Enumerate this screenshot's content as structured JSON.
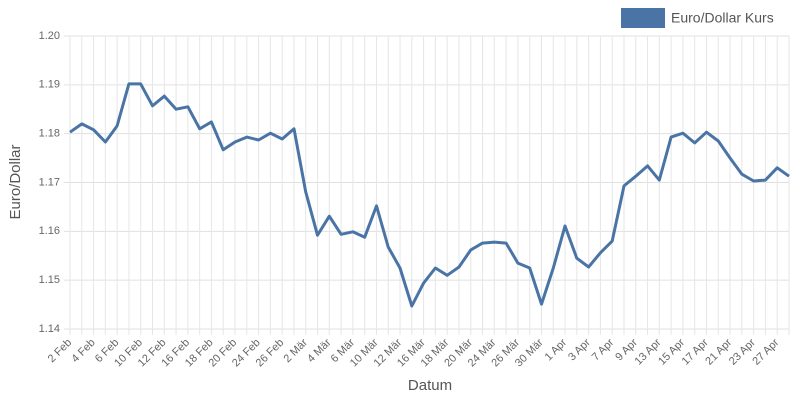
{
  "chart_data": {
    "type": "line",
    "x_label": "Datum",
    "y_label": "Euro/Dollar",
    "categories": [
      "2 Feb",
      null,
      "4 Feb",
      null,
      "6 Feb",
      null,
      "10 Feb",
      null,
      "12 Feb",
      null,
      "16 Feb",
      null,
      "18 Feb",
      null,
      "20 Feb",
      null,
      "24 Feb",
      null,
      "26 Feb",
      null,
      "2 Mär",
      null,
      "4 Mär",
      null,
      "6 Mär",
      null,
      "10 Mär",
      null,
      "12 Mär",
      null,
      "16 Mär",
      null,
      "18 Mär",
      null,
      "20 Mär",
      null,
      "24 Mär",
      null,
      "26 Mär",
      null,
      "30 Mär",
      null,
      "1 Apr",
      null,
      "3 Apr",
      null,
      "7 Apr",
      null,
      "9 Apr",
      null,
      "13 Apr",
      null,
      "15 Apr",
      null,
      "17 Apr",
      null,
      "21 Apr",
      null,
      "23 Apr",
      null,
      "27 Apr",
      null
    ],
    "series": [
      {
        "name": "Euro/Dollar Kurs",
        "color": "#4a74a6",
        "values": [
          1.1803,
          1.182,
          1.1808,
          1.1783,
          1.1816,
          1.1902,
          1.1902,
          1.1857,
          1.1877,
          1.185,
          1.1855,
          1.181,
          1.1824,
          1.1767,
          1.1783,
          1.1793,
          1.1787,
          1.1801,
          1.1789,
          1.181,
          1.1681,
          1.1592,
          1.1631,
          1.1594,
          1.1599,
          1.1588,
          1.1652,
          1.1568,
          1.1525,
          1.1447,
          1.1494,
          1.1525,
          1.151,
          1.1527,
          1.1562,
          1.1576,
          1.1578,
          1.1576,
          1.1535,
          1.1525,
          1.1451,
          1.1525,
          1.1611,
          1.1545,
          1.1527,
          1.1556,
          1.158,
          1.1693,
          1.1713,
          1.1734,
          1.1705,
          1.1793,
          1.1801,
          1.1781,
          1.1803,
          1.1785,
          1.175,
          1.1717,
          1.1703,
          1.1705,
          1.173,
          1.1713
        ]
      }
    ],
    "ylim": [
      1.14,
      1.2
    ],
    "yticks": [
      1.14,
      1.15,
      1.16,
      1.17,
      1.18,
      1.19,
      {
        "value": 1.2,
        "label": "1.20"
      }
    ],
    "grid": true,
    "legend": "top-right"
  }
}
